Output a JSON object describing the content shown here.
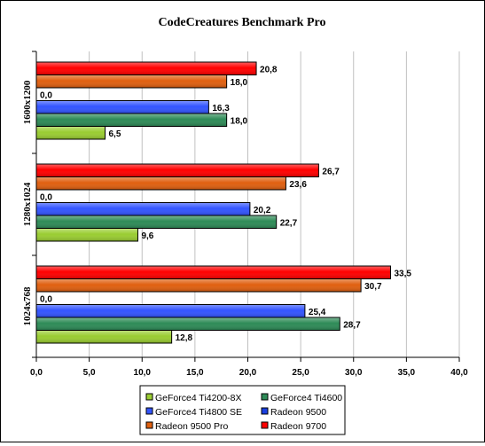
{
  "chart_data": {
    "type": "bar",
    "orientation": "horizontal",
    "title": "CodeCreatures Benchmark Pro",
    "categories": [
      "1600x1200",
      "1280x1024",
      "1024x768"
    ],
    "xlim": [
      0,
      40
    ],
    "x_ticks": [
      "0,0",
      "5,0",
      "10,0",
      "15,0",
      "20,0",
      "25,0",
      "30,0",
      "35,0",
      "40,0"
    ],
    "x_tick_values": [
      0,
      5,
      10,
      15,
      20,
      25,
      30,
      35,
      40
    ],
    "grid": "vertical",
    "legend_position": "bottom",
    "series": [
      {
        "name": "Radeon 9700",
        "color": "#ff0000",
        "values": [
          20.8,
          26.7,
          33.5
        ],
        "labels": [
          "20,8",
          "26,7",
          "33,5"
        ]
      },
      {
        "name": "Radeon 9500 Pro",
        "color": "#e06010",
        "values": [
          18.0,
          23.6,
          30.7
        ],
        "labels": [
          "18,0",
          "23,6",
          "30,7"
        ]
      },
      {
        "name": "Radeon 9500",
        "color": "#1a3fe0",
        "values": [
          0.0,
          0.0,
          0.0
        ],
        "labels": [
          "0,0",
          "0,0",
          "0,0"
        ]
      },
      {
        "name": "GeForce4 Ti4800 SE",
        "color": "#3355ff",
        "values": [
          16.3,
          20.2,
          25.4
        ],
        "labels": [
          "16,3",
          "20,2",
          "25,4"
        ]
      },
      {
        "name": "GeForce4 Ti4600",
        "color": "#2e8b57",
        "values": [
          18.0,
          22.7,
          28.7
        ],
        "labels": [
          "18,0",
          "22,7",
          "28,7"
        ]
      },
      {
        "name": "GeForce4 Ti4200-8X",
        "color": "#9acd32",
        "values": [
          6.5,
          9.6,
          12.8
        ],
        "labels": [
          "6,5",
          "9,6",
          "12,8"
        ]
      }
    ],
    "legend": [
      {
        "name": "GeForce4 Ti4200-8X",
        "color": "#9acd32"
      },
      {
        "name": "GeForce4 Ti4600",
        "color": "#2e8b57"
      },
      {
        "name": "GeForce4 Ti4800 SE",
        "color": "#3355ff"
      },
      {
        "name": "Radeon 9500",
        "color": "#1a3fe0"
      },
      {
        "name": "Radeon 9500 Pro",
        "color": "#e06010"
      },
      {
        "name": "Radeon 9700",
        "color": "#ff0000"
      }
    ]
  }
}
